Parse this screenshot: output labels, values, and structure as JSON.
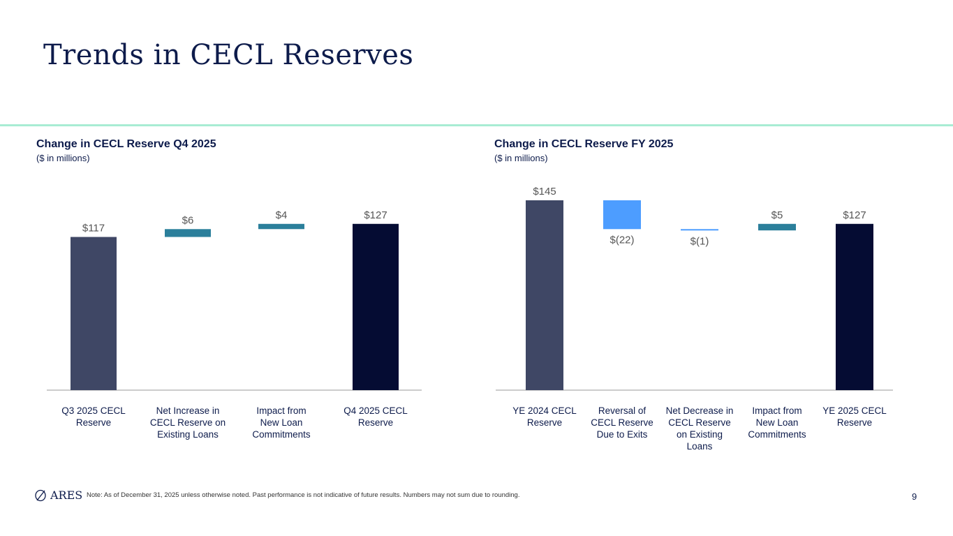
{
  "page": {
    "title": "Trends in CECL Reserves",
    "note": "Note: As of December 31, 2025 unless otherwise noted. Past performance is not indicative of future results. Numbers may not sum due to rounding.",
    "page_number": "9",
    "logo_text": "ARES"
  },
  "colors": {
    "start": "#3f4765",
    "end": "#050c33",
    "increase": "#2b7f9b",
    "decrease": "#4d9dff",
    "axis": "#9a9a9a",
    "label": "#555555",
    "divider": "#a8ecd3"
  },
  "chart_data": [
    {
      "type": "waterfall",
      "title": "Change in CECL Reserve Q4 2025",
      "subtitle": "($ in millions)",
      "categories": [
        "Q3 2025 CECL Reserve",
        "Net Increase in CECL Reserve on Existing Loans",
        "Impact from New Loan Commitments",
        "Q4 2025 CECL Reserve"
      ],
      "category_lines": [
        [
          "Q3 2025 CECL",
          "Reserve"
        ],
        [
          "Net Increase in",
          "CECL Reserve on",
          "Existing Loans"
        ],
        [
          "Impact from",
          "New Loan",
          "Commitments"
        ],
        [
          "Q4 2025 CECL",
          "Reserve"
        ]
      ],
      "values": [
        117,
        6,
        4,
        127
      ],
      "kinds": [
        "total",
        "change",
        "change",
        "total"
      ],
      "data_labels": [
        "$117",
        "$6",
        "$4",
        "$127"
      ],
      "ylim": [
        0,
        145
      ]
    },
    {
      "type": "waterfall",
      "title": "Change in CECL Reserve FY 2025",
      "subtitle": "($ in millions)",
      "categories": [
        "YE 2024 CECL Reserve",
        "Reversal of CECL Reserve Due to Exits",
        "Net Decrease in CECL Reserve on Existing Loans",
        "Impact from New Loan Commitments",
        "YE 2025 CECL Reserve"
      ],
      "category_lines": [
        [
          "YE 2024 CECL",
          "Reserve"
        ],
        [
          "Reversal of",
          "CECL Reserve",
          "Due to Exits"
        ],
        [
          "Net Decrease in",
          "CECL Reserve",
          "on Existing",
          "Loans"
        ],
        [
          "Impact from",
          "New Loan",
          "Commitments"
        ],
        [
          "YE 2025 CECL",
          "Reserve"
        ]
      ],
      "values": [
        145,
        -22,
        -1,
        5,
        127
      ],
      "kinds": [
        "total",
        "change",
        "change",
        "change",
        "total"
      ],
      "data_labels": [
        "$145",
        "$(22)",
        "$(1)",
        "$5",
        "$127"
      ],
      "ylim": [
        0,
        145
      ]
    }
  ]
}
